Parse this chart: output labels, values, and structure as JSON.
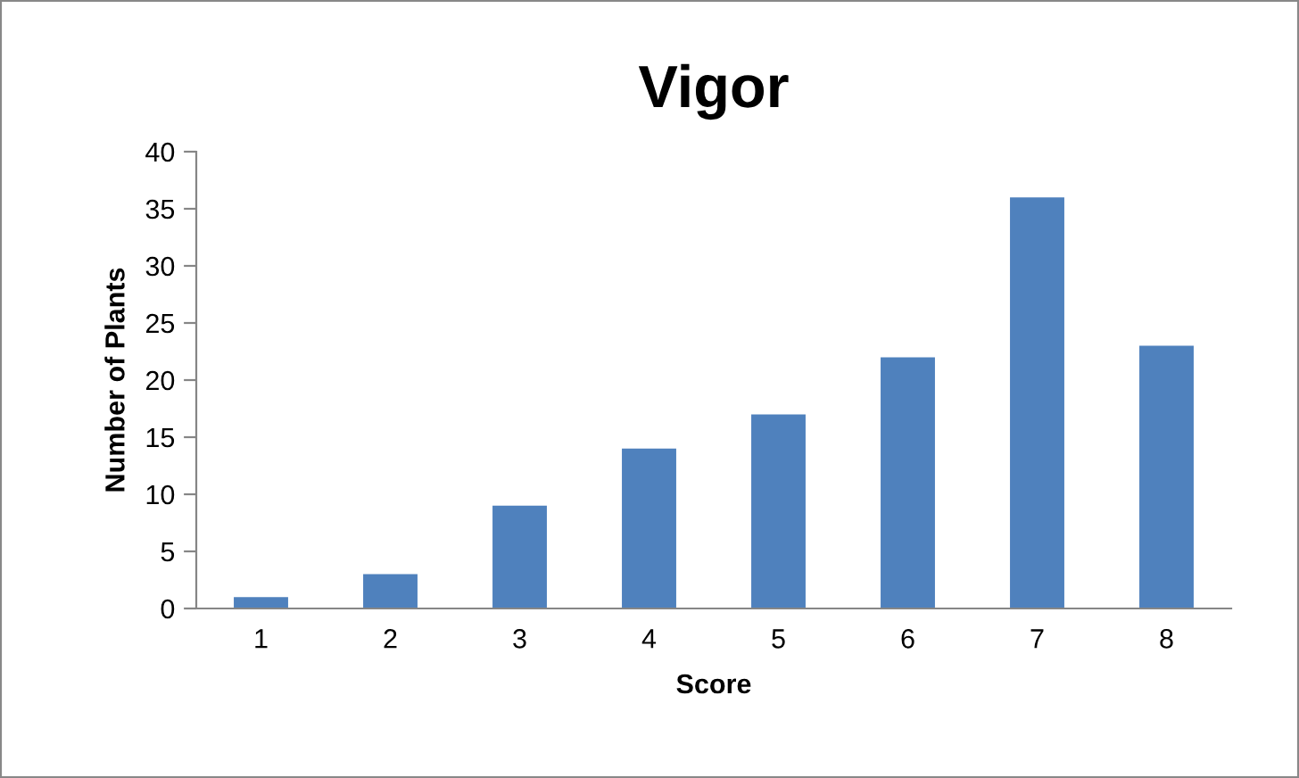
{
  "chart_data": {
    "type": "bar",
    "title": "Vigor",
    "xlabel": "Score",
    "ylabel": "Number of Plants",
    "categories": [
      "1",
      "2",
      "3",
      "4",
      "5",
      "6",
      "7",
      "8"
    ],
    "values": [
      1,
      3,
      9,
      14,
      17,
      22,
      36,
      23
    ],
    "color": "#4f81bd",
    "ylim": [
      0,
      40
    ],
    "yticks": [
      0,
      5,
      10,
      15,
      20,
      25,
      30,
      35,
      40
    ],
    "grid": false,
    "legend": false
  }
}
